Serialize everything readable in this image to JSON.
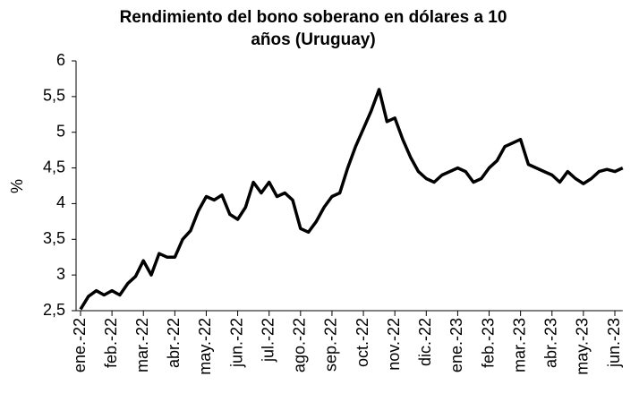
{
  "chart_data": {
    "type": "line",
    "title": [
      "Rendimiento del bono soberano en dólares a 10",
      "años (Uruguay)"
    ],
    "y_label": "%",
    "categories": [
      "ene.-22",
      null,
      null,
      null,
      "feb.-22",
      null,
      null,
      null,
      "mar.-22",
      null,
      null,
      null,
      "abr.-22",
      null,
      null,
      null,
      "may.-22",
      null,
      null,
      null,
      "jun.-22",
      null,
      null,
      null,
      "jul.-22",
      null,
      null,
      null,
      "ago.-22",
      null,
      null,
      null,
      "sep.-22",
      null,
      null,
      null,
      "oct.-22",
      null,
      null,
      null,
      "nov.-22",
      null,
      null,
      null,
      "dic.-22",
      null,
      null,
      null,
      "ene.-23",
      null,
      null,
      null,
      "feb.-23",
      null,
      null,
      null,
      "mar.-23",
      null,
      null,
      null,
      "abr.-23",
      null,
      null,
      null,
      "may.-23",
      null,
      null,
      null,
      "jun.-23",
      null
    ],
    "series": [
      {
        "name": "Rendimiento",
        "color": "#000000",
        "values": [
          2.52,
          2.7,
          2.78,
          2.72,
          2.78,
          2.72,
          2.88,
          2.98,
          3.2,
          3.0,
          3.3,
          3.25,
          3.25,
          3.5,
          3.62,
          3.9,
          4.1,
          4.05,
          4.12,
          3.85,
          3.78,
          3.95,
          4.3,
          4.15,
          4.3,
          4.1,
          4.15,
          4.05,
          3.65,
          3.6,
          3.75,
          3.95,
          4.1,
          4.15,
          4.5,
          4.8,
          5.05,
          5.3,
          5.6,
          5.15,
          5.2,
          4.9,
          4.65,
          4.45,
          4.35,
          4.3,
          4.4,
          4.45,
          4.5,
          4.45,
          4.3,
          4.35,
          4.5,
          4.6,
          4.8,
          4.85,
          4.9,
          4.55,
          4.5,
          4.45,
          4.4,
          4.3,
          4.45,
          4.35,
          4.28,
          4.35,
          4.45,
          4.48,
          4.45,
          4.5
        ]
      }
    ],
    "ylim": [
      2.5,
      6
    ],
    "yticks": [
      {
        "value": 2.5,
        "label": "2,5"
      },
      3,
      {
        "value": 3.5,
        "label": "3,5"
      },
      4,
      {
        "value": 4.5,
        "label": "4,5"
      },
      5,
      {
        "value": 5.5,
        "label": "5,5"
      },
      6
    ],
    "grid": false
  }
}
